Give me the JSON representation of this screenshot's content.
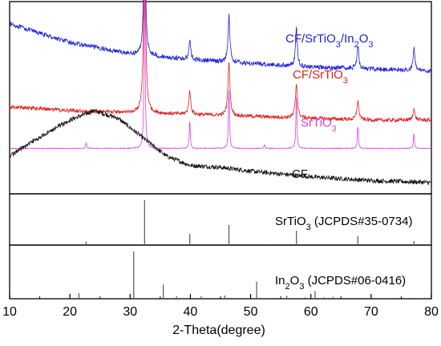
{
  "chart_data": {
    "type": "line",
    "xlabel": "2-Theta(degree)",
    "xlim": [
      10,
      80
    ],
    "xticks": [
      10,
      20,
      30,
      40,
      50,
      60,
      70,
      80
    ],
    "y_axis": "none (stacked, offset curves; no y tick labels)",
    "panels": [
      {
        "kind": "xrd_patterns",
        "series": [
          {
            "name": "CF/SrTiO3/In2O3",
            "color": "#1f1fe0",
            "baseline": [
              [
                10,
                0.9
              ],
              [
                20,
                0.8
              ],
              [
                30,
                0.74
              ],
              [
                40,
                0.71
              ],
              [
                50,
                0.69
              ],
              [
                60,
                0.67
              ],
              [
                70,
                0.66
              ],
              [
                80,
                0.65
              ]
            ],
            "peaks": [
              [
                32.4,
                0.75
              ],
              [
                39.9,
                0.1
              ],
              [
                46.4,
                0.25
              ],
              [
                57.6,
                0.2
              ],
              [
                67.8,
                0.13
              ],
              [
                77.1,
                0.12
              ]
            ]
          },
          {
            "name": "CF/SrTiO3",
            "color": "#e01f1f",
            "baseline": [
              [
                10,
                0.46
              ],
              [
                20,
                0.44
              ],
              [
                30,
                0.43
              ],
              [
                40,
                0.42
              ],
              [
                50,
                0.41
              ],
              [
                60,
                0.4
              ],
              [
                70,
                0.39
              ],
              [
                80,
                0.39
              ]
            ],
            "peaks": [
              [
                32.4,
                0.92
              ],
              [
                39.9,
                0.12
              ],
              [
                46.4,
                0.28
              ],
              [
                57.6,
                0.18
              ],
              [
                67.8,
                0.1
              ],
              [
                77.1,
                0.06
              ]
            ]
          },
          {
            "name": "SrTiO3",
            "color": "#e040e0",
            "baseline": [
              [
                10,
                0.24
              ],
              [
                80,
                0.24
              ]
            ],
            "peaks": [
              [
                22.7,
                0.03
              ],
              [
                32.4,
                0.95
              ],
              [
                39.9,
                0.15
              ],
              [
                46.4,
                0.32
              ],
              [
                52.3,
                0.02
              ],
              [
                57.6,
                0.28
              ],
              [
                67.8,
                0.12
              ],
              [
                77.1,
                0.08
              ]
            ]
          },
          {
            "name": "CF",
            "color": "#111111",
            "baseline": [
              [
                10,
                0.2
              ],
              [
                15,
                0.3
              ],
              [
                20,
                0.39
              ],
              [
                24,
                0.44
              ],
              [
                28,
                0.4
              ],
              [
                32,
                0.3
              ],
              [
                36,
                0.2
              ],
              [
                40,
                0.15
              ],
              [
                45,
                0.14
              ],
              [
                50,
                0.12
              ],
              [
                60,
                0.09
              ],
              [
                70,
                0.07
              ],
              [
                80,
                0.06
              ]
            ],
            "peaks": []
          }
        ],
        "labels": [
          {
            "text": "CF/SrTiO",
            "sub1": "3",
            "mid": "/In",
            "sub2": "2",
            "end": "O",
            "sub3": "3",
            "color": "#1f1fe0"
          },
          {
            "text": "CF/SrTiO",
            "sub1": "3",
            "color": "#e01f1f"
          },
          {
            "text": "SrTiO",
            "sub1": "3",
            "color": "#e040e0"
          },
          {
            "text": "CF",
            "color": "#111111"
          }
        ]
      },
      {
        "kind": "reference_sticks",
        "label": {
          "pre": "SrTiO",
          "sub": "3",
          "post": " (JCPDS#35-0734)"
        },
        "sticks": [
          [
            22.7,
            0.08
          ],
          [
            32.4,
            1.0
          ],
          [
            39.9,
            0.25
          ],
          [
            46.4,
            0.45
          ],
          [
            52.3,
            0.02
          ],
          [
            57.6,
            0.32
          ],
          [
            67.8,
            0.2
          ],
          [
            72.5,
            0.02
          ],
          [
            77.1,
            0.09
          ]
        ]
      },
      {
        "kind": "reference_sticks",
        "label": {
          "pre": "In",
          "sub": "2",
          "mid": "O",
          "sub2": "3",
          "post": " (JCPDS#06-0416)"
        },
        "sticks": [
          [
            21.5,
            0.12
          ],
          [
            30.6,
            1.0
          ],
          [
            35.5,
            0.3
          ],
          [
            37.7,
            0.05
          ],
          [
            41.8,
            0.05
          ],
          [
            45.7,
            0.07
          ],
          [
            51.0,
            0.36
          ],
          [
            56.0,
            0.06
          ],
          [
            59.1,
            0.03
          ],
          [
            60.7,
            0.16
          ],
          [
            62.2,
            0.03
          ],
          [
            63.7,
            0.04
          ],
          [
            66.1,
            0.02
          ],
          [
            68.1,
            0.02
          ],
          [
            69.5,
            0.02
          ],
          [
            73.7,
            0.02
          ],
          [
            75.3,
            0.02
          ],
          [
            76.9,
            0.02
          ],
          [
            78.9,
            0.02
          ]
        ]
      }
    ],
    "grid": false,
    "legend": "none (inline labels)"
  }
}
